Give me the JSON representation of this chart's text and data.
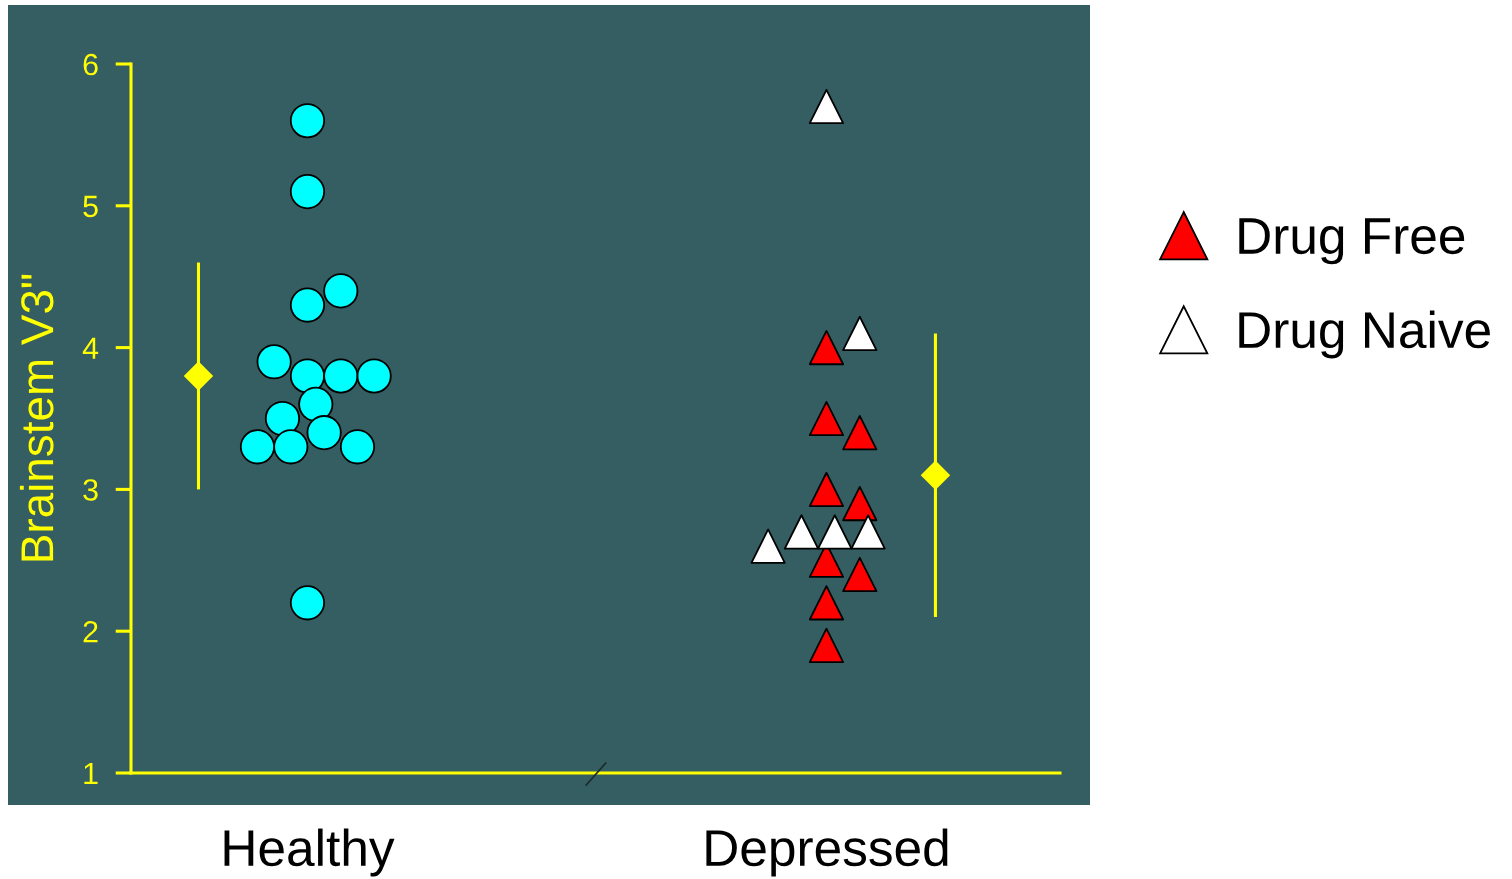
{
  "chart_data": {
    "type": "scatter",
    "ylabel": "Brainstem V3\"",
    "categories": [
      "Healthy",
      "Depressed"
    ],
    "series": [
      {
        "color": "#00ffff",
        "marker": "circle",
        "x": [
          "Healthy",
          "Healthy",
          "Healthy",
          "Healthy",
          "Healthy",
          "Healthy",
          "Healthy",
          "Healthy",
          "Healthy",
          "Healthy",
          "Healthy",
          "Healthy",
          "Healthy",
          "Healthy",
          "Healthy"
        ],
        "values": [
          5.6,
          5.1,
          4.3,
          4.4,
          3.8,
          3.8,
          3.9,
          3.8,
          3.6,
          3.5,
          3.4,
          3.3,
          3.3,
          3.3,
          2.2
        ]
      },
      {
        "name": "Drug Free",
        "color": "#ff0000",
        "marker": "triangle",
        "x": [
          "Depressed",
          "Depressed",
          "Depressed",
          "Depressed",
          "Depressed",
          "Depressed",
          "Depressed",
          "Depressed",
          "Depressed"
        ],
        "values": [
          4.0,
          3.5,
          3.4,
          3.0,
          2.9,
          2.5,
          2.4,
          2.2,
          1.9
        ]
      },
      {
        "name": "Drug Naive",
        "color": "#ffffff",
        "marker": "triangle",
        "x": [
          "Depressed",
          "Depressed",
          "Depressed",
          "Depressed",
          "Depressed",
          "Depressed"
        ],
        "values": [
          5.7,
          4.1,
          2.7,
          2.7,
          2.7,
          2.6
        ]
      },
      {
        "color": "#ffff00",
        "marker": "diamond",
        "x": [
          "Healthy",
          "Depressed"
        ],
        "values": [
          3.8,
          3.1
        ],
        "errors": [
          0.8,
          1.0
        ]
      }
    ],
    "ylim": [
      1,
      6
    ],
    "yticks": [
      1,
      2,
      3,
      4,
      5,
      6
    ],
    "legend": "right"
  }
}
